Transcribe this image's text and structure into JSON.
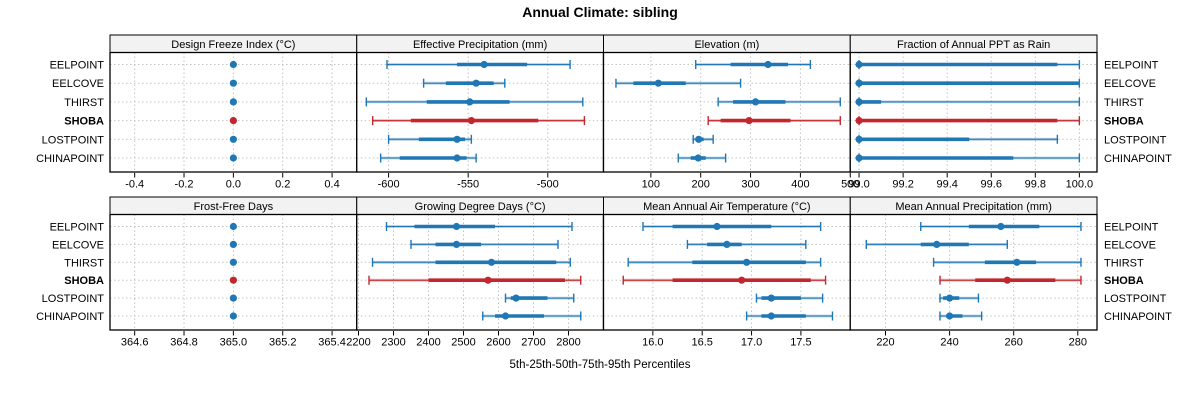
{
  "chart_data": {
    "type": "scatter",
    "subtype": "trellis-percentile-dotplot",
    "title": "Annual Climate: sibling",
    "caption": "5th-25th-50th-75th-95th Percentiles",
    "percentiles": [
      5,
      25,
      50,
      75,
      95
    ],
    "stations": [
      "EELPOINT",
      "EELCOVE",
      "THIRST",
      "SHOBA",
      "LOSTPOINT",
      "CHINAPOINT"
    ],
    "highlight_station": "SHOBA",
    "colors": {
      "normal": "#1F77B4",
      "highlight": "#C1272D",
      "strip_bg": "#F2F2F2",
      "grid": "#C3C3C3",
      "border": "#000000"
    },
    "grid": "dotted",
    "panels": [
      {
        "title": "Design Freeze Index (°C)",
        "xlim": [
          -0.5,
          0.5
        ],
        "ticks": [
          -0.4,
          -0.2,
          0.0,
          0.2,
          0.4
        ],
        "tick_labels": [
          "-0.4",
          "-0.2",
          "0.0",
          "0.2",
          "0.4"
        ],
        "values": [
          [
            0.0,
            0.0,
            0.0,
            0.0,
            0.0
          ],
          [
            0.0,
            0.0,
            0.0,
            0.0,
            0.0
          ],
          [
            0.0,
            0.0,
            0.0,
            0.0,
            0.0
          ],
          [
            0.0,
            0.0,
            0.0,
            0.0,
            0.0
          ],
          [
            0.0,
            0.0,
            0.0,
            0.0,
            0.0
          ],
          [
            0.0,
            0.0,
            0.0,
            0.0,
            0.0
          ]
        ]
      },
      {
        "title": "Effective Precipitation (mm)",
        "xlim": [
          -620,
          -465
        ],
        "ticks": [
          -600,
          -550,
          -500
        ],
        "tick_labels": [
          "-600",
          "-550",
          "-500"
        ],
        "values": [
          [
            -601,
            -557,
            -540,
            -513,
            -486
          ],
          [
            -578,
            -564,
            -545,
            -534,
            -527
          ],
          [
            -614,
            -576,
            -549,
            -524,
            -478
          ],
          [
            -610,
            -586,
            -548,
            -506,
            -477
          ],
          [
            -600,
            -581,
            -557,
            -552,
            -548
          ],
          [
            -605,
            -593,
            -557,
            -551,
            -545
          ]
        ]
      },
      {
        "title": "Elevation (m)",
        "xlim": [
          5,
          500
        ],
        "ticks": [
          100,
          200,
          300,
          400,
          500
        ],
        "tick_labels": [
          "100",
          "200",
          "300",
          "400",
          "500"
        ],
        "values": [
          [
            190,
            260,
            335,
            375,
            420
          ],
          [
            30,
            65,
            115,
            170,
            280
          ],
          [
            235,
            265,
            310,
            370,
            480
          ],
          [
            215,
            240,
            297,
            380,
            480
          ],
          [
            185,
            190,
            196,
            206,
            225
          ],
          [
            155,
            180,
            195,
            210,
            250
          ]
        ]
      },
      {
        "title": "Fraction of Annual PPT as Rain",
        "xlim": [
          98.96,
          100.08
        ],
        "ticks": [
          99.0,
          99.2,
          99.4,
          99.6,
          99.8,
          100.0
        ],
        "tick_labels": [
          "99.0",
          "99.2",
          "99.4",
          "99.6",
          "99.8",
          "100.0"
        ],
        "values": [
          [
            99.0,
            99.0,
            99.0,
            99.9,
            100.0
          ],
          [
            99.0,
            99.0,
            99.0,
            100.0,
            100.0
          ],
          [
            99.0,
            99.0,
            99.0,
            99.1,
            100.0
          ],
          [
            99.0,
            99.0,
            99.0,
            99.9,
            100.0
          ],
          [
            99.0,
            99.0,
            99.0,
            99.5,
            99.9
          ],
          [
            99.0,
            99.0,
            99.0,
            99.7,
            100.0
          ]
        ]
      },
      {
        "title": "Frost-Free Days",
        "xlim": [
          364.5,
          365.5
        ],
        "ticks": [
          364.6,
          364.8,
          365.0,
          365.2,
          365.4
        ],
        "tick_labels": [
          "364.6",
          "364.8",
          "365.0",
          "365.2",
          "365.4"
        ],
        "values": [
          [
            365.0,
            365.0,
            365.0,
            365.0,
            365.0
          ],
          [
            365.0,
            365.0,
            365.0,
            365.0,
            365.0
          ],
          [
            365.0,
            365.0,
            365.0,
            365.0,
            365.0
          ],
          [
            365.0,
            365.0,
            365.0,
            365.0,
            365.0
          ],
          [
            365.0,
            365.0,
            365.0,
            365.0,
            365.0
          ],
          [
            365.0,
            365.0,
            365.0,
            365.0,
            365.0
          ]
        ]
      },
      {
        "title": "Growing Degree Days (°C)",
        "xlim": [
          2195,
          2900
        ],
        "ticks": [
          2200,
          2300,
          2400,
          2500,
          2600,
          2700,
          2800
        ],
        "tick_labels": [
          "2200",
          "2300",
          "2400",
          "2500",
          "2600",
          "2700",
          "2800"
        ],
        "values": [
          [
            2280,
            2360,
            2480,
            2590,
            2810
          ],
          [
            2350,
            2420,
            2480,
            2550,
            2770
          ],
          [
            2240,
            2420,
            2580,
            2765,
            2805
          ],
          [
            2230,
            2400,
            2570,
            2790,
            2835
          ],
          [
            2620,
            2635,
            2650,
            2740,
            2815
          ],
          [
            2555,
            2590,
            2620,
            2730,
            2835
          ]
        ]
      },
      {
        "title": "Mean Annual Air Temperature (°C)",
        "xlim": [
          15.5,
          18.0
        ],
        "ticks": [
          16.0,
          16.5,
          17.0,
          17.5
        ],
        "tick_labels": [
          "16.0",
          "16.5",
          "17.0",
          "17.5"
        ],
        "values": [
          [
            15.9,
            16.2,
            16.65,
            17.2,
            17.7
          ],
          [
            16.35,
            16.55,
            16.75,
            16.9,
            17.55
          ],
          [
            15.75,
            16.4,
            16.95,
            17.55,
            17.7
          ],
          [
            15.7,
            16.2,
            16.9,
            17.6,
            17.75
          ],
          [
            17.05,
            17.1,
            17.2,
            17.5,
            17.72
          ],
          [
            16.95,
            17.1,
            17.2,
            17.55,
            17.82
          ]
        ]
      },
      {
        "title": "Mean Annual Precipitation (mm)",
        "xlim": [
          209,
          286
        ],
        "ticks": [
          220,
          240,
          260,
          280
        ],
        "tick_labels": [
          "220",
          "240",
          "260",
          "280"
        ],
        "values": [
          [
            231,
            246,
            256,
            268,
            281
          ],
          [
            214,
            231,
            236,
            246,
            258
          ],
          [
            235,
            251,
            261,
            267,
            281
          ],
          [
            237,
            248,
            258,
            273,
            281
          ],
          [
            237,
            238,
            240,
            243,
            249
          ],
          [
            237,
            239,
            240,
            244,
            250
          ]
        ]
      }
    ]
  }
}
